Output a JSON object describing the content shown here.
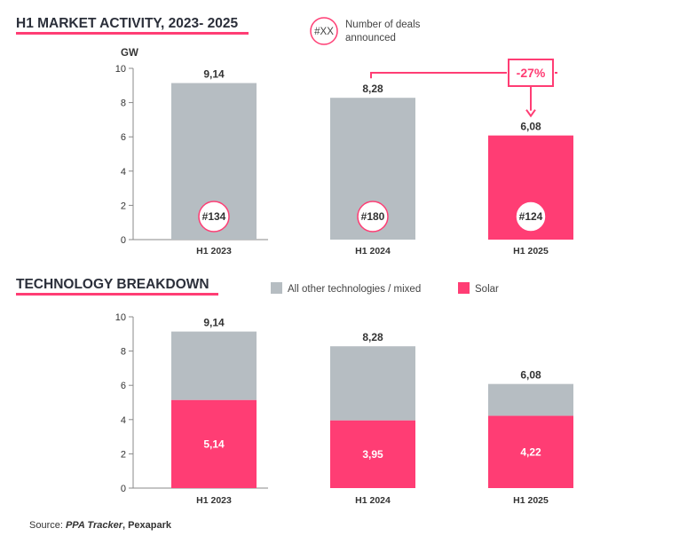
{
  "colors": {
    "other": "#b6bdc2",
    "solar": "#ff3d74",
    "accent": "#ff3d74",
    "axis": "#888888",
    "title_underline": "#ff3d74"
  },
  "chart_data": [
    {
      "type": "bar",
      "title": "H1 MARKET ACTIVITY, 2023- 2025",
      "ylabel": "GW",
      "categories": [
        "H1 2023",
        "H1 2024",
        "H1 2025"
      ],
      "values": [
        9.14,
        8.28,
        6.08
      ],
      "value_labels": [
        "9,14",
        "8,28",
        "6,08"
      ],
      "highlight_index": 2,
      "ylim": [
        0,
        10
      ],
      "yticks": [
        0,
        2,
        4,
        6,
        8,
        10
      ],
      "deals": [
        "#134",
        "#180",
        "#124"
      ],
      "deal_legend": {
        "symbol": "#XX",
        "text_line1": "Number of deals",
        "text_line2": "announced"
      },
      "change_annotation": {
        "label": "-27%",
        "from_index": 1,
        "to_index": 2
      },
      "grid": false
    },
    {
      "type": "bar",
      "stacked": true,
      "title": "TECHNOLOGY BREAKDOWN",
      "categories": [
        "H1 2023",
        "H1 2024",
        "H1 2025"
      ],
      "totals": [
        9.14,
        8.28,
        6.08
      ],
      "total_labels": [
        "9,14",
        "8,28",
        "6,08"
      ],
      "series": [
        {
          "name": "Solar",
          "values": [
            5.14,
            3.95,
            4.22
          ],
          "labels": [
            "5,14",
            "3,95",
            "4,22"
          ]
        },
        {
          "name": "All other technologies / mixed",
          "values": [
            4.0,
            4.33,
            1.86
          ]
        }
      ],
      "ylim": [
        0,
        10
      ],
      "yticks": [
        0,
        2,
        4,
        6,
        8,
        10
      ],
      "legend_position": "top",
      "grid": false
    }
  ],
  "source": {
    "prefix": "Source: ",
    "italic": "PPA Tracker",
    "suffix": ", Pexapark"
  }
}
